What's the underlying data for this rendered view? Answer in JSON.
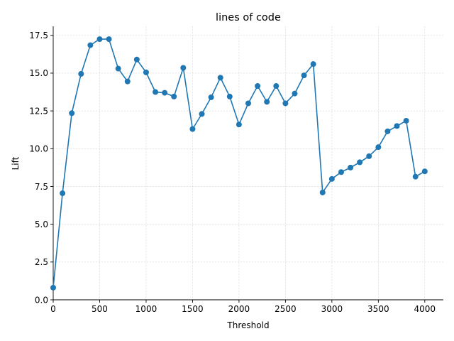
{
  "chart_data": {
    "type": "line",
    "title": "lines of code",
    "xlabel": "Threshold",
    "ylabel": "Lift",
    "xlim": [
      0,
      4200
    ],
    "ylim": [
      0,
      18.1
    ],
    "xticks": [
      0,
      500,
      1000,
      1500,
      2000,
      2500,
      3000,
      3500,
      4000
    ],
    "xtick_labels": [
      "0",
      "500",
      "1000",
      "1500",
      "2000",
      "2500",
      "3000",
      "3500",
      "4000"
    ],
    "yticks": [
      0,
      2.5,
      5,
      7.5,
      10,
      12.5,
      15,
      17.5
    ],
    "ytick_labels": [
      "0.0",
      "2.5",
      "5.0",
      "7.5",
      "10.0",
      "12.5",
      "15.0",
      "17.5"
    ],
    "grid": true,
    "color": "#1f77b4",
    "x": [
      0,
      100,
      200,
      300,
      400,
      500,
      600,
      700,
      800,
      900,
      1000,
      1100,
      1200,
      1300,
      1400,
      1500,
      1600,
      1700,
      1800,
      1900,
      2000,
      2100,
      2200,
      2300,
      2400,
      2500,
      2600,
      2700,
      2800,
      2900,
      3000,
      3100,
      3200,
      3300,
      3400,
      3500,
      3600,
      3700,
      3800,
      3900,
      4000
    ],
    "y": [
      0.8,
      7.05,
      12.35,
      14.95,
      16.85,
      17.25,
      17.25,
      15.3,
      14.45,
      15.9,
      15.05,
      13.75,
      13.7,
      13.45,
      15.35,
      11.3,
      12.3,
      13.4,
      14.7,
      13.45,
      11.6,
      13.0,
      14.15,
      13.1,
      14.15,
      13.0,
      13.65,
      14.85,
      15.6,
      7.1,
      8.0,
      8.45,
      8.75,
      9.1,
      9.5,
      10.1,
      11.15,
      11.5,
      11.85,
      8.15,
      8.5
    ]
  }
}
